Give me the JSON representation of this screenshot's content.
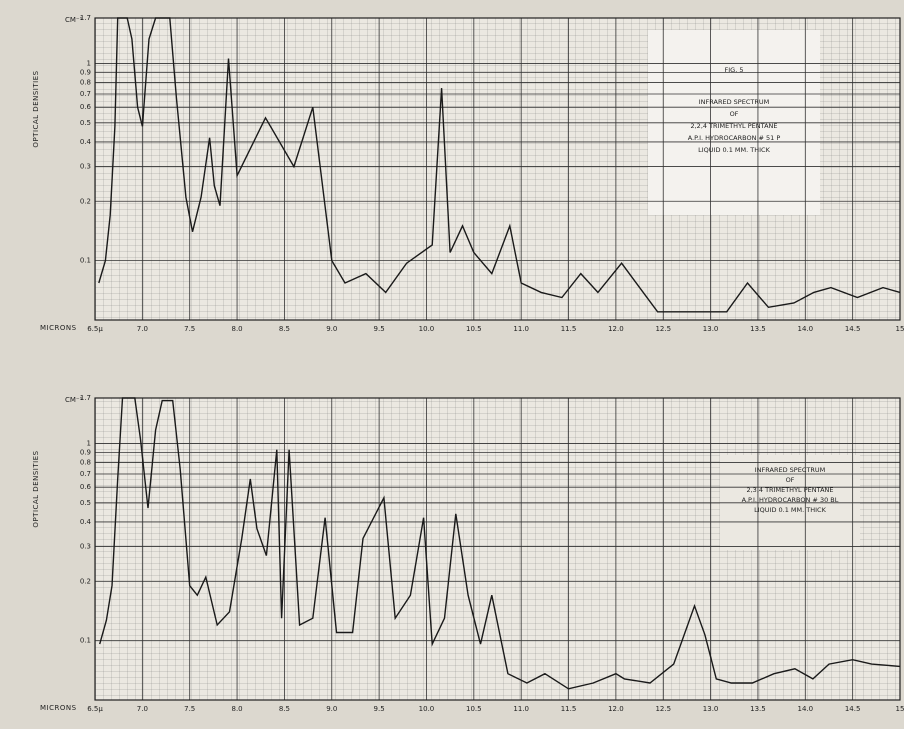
{
  "chart_data": [
    {
      "type": "line",
      "y_unit": "CM⁻¹",
      "ylabel": "OPTICAL DENSITIES",
      "xlabel": "MICRONS",
      "annotations": [
        "FIG. 5",
        "INFRARED SPECTRUM",
        "OF",
        "2,2,4 TRIMETHYL PENTANE",
        "A.P.I. HYDROCARBON # 51 P",
        "LIQUID 0.1 MM. THICK"
      ],
      "log_y": true,
      "grid": true,
      "color": "#1a1a1a",
      "xlim": [
        6.5,
        15
      ],
      "ylim": [
        0.05,
        1.7
      ],
      "xticks": [
        {
          "value": 6.5,
          "label": "6.5μ"
        },
        {
          "value": 7,
          "label": "7.0"
        },
        {
          "value": 7.5,
          "label": "7.5"
        },
        {
          "value": 8,
          "label": "8.0"
        },
        {
          "value": 8.5,
          "label": "8.5"
        },
        {
          "value": 9,
          "label": "9.0"
        },
        {
          "value": 9.5,
          "label": "9.5"
        },
        {
          "value": 10,
          "label": "10.0"
        },
        {
          "value": 10.5,
          "label": "10.5"
        },
        {
          "value": 11,
          "label": "11.0"
        },
        {
          "value": 11.5,
          "label": "11.5"
        },
        {
          "value": 12,
          "label": "12.0"
        },
        {
          "value": 12.5,
          "label": "12.5"
        },
        {
          "value": 13,
          "label": "13.0"
        },
        {
          "value": 13.5,
          "label": "13.5"
        },
        {
          "value": 14,
          "label": "14.0"
        },
        {
          "value": 14.5,
          "label": "14.5"
        },
        {
          "value": 15,
          "label": "15"
        }
      ],
      "yticks": [
        0.1,
        0.2,
        0.3,
        0.4,
        0.5,
        0.6,
        0.7,
        0.8,
        0.9,
        1,
        1.7
      ],
      "x": [
        6.54,
        6.61,
        6.66,
        6.71,
        6.74,
        6.84,
        6.89,
        6.95,
        7.0,
        7.07,
        7.14,
        7.29,
        7.36,
        7.46,
        7.53,
        7.62,
        7.71,
        7.76,
        7.82,
        7.91,
        8.0,
        8.3,
        8.6,
        8.8,
        9.0,
        9.14,
        9.36,
        9.57,
        9.79,
        10.06,
        10.16,
        10.25,
        10.38,
        10.5,
        10.69,
        10.88,
        11.0,
        11.21,
        11.43,
        11.63,
        11.81,
        12.06,
        12.25,
        12.44,
        12.94,
        13.17,
        13.39,
        13.61,
        13.88,
        14.09,
        14.27,
        14.55,
        14.82,
        15.0
      ],
      "values": [
        0.077,
        0.1,
        0.17,
        0.48,
        1.7,
        1.7,
        1.33,
        0.6,
        0.48,
        1.33,
        1.7,
        1.7,
        0.67,
        0.21,
        0.14,
        0.21,
        0.42,
        0.24,
        0.19,
        1.06,
        0.27,
        0.53,
        0.3,
        0.6,
        0.1,
        0.077,
        0.086,
        0.069,
        0.097,
        0.12,
        0.75,
        0.11,
        0.15,
        0.11,
        0.086,
        0.15,
        0.077,
        0.069,
        0.065,
        0.086,
        0.069,
        0.097,
        0.073,
        0.055,
        0.055,
        0.055,
        0.077,
        0.058,
        0.061,
        0.069,
        0.073,
        0.065,
        0.073,
        0.069
      ]
    },
    {
      "type": "line",
      "y_unit": "CM⁻¹",
      "ylabel": "OPTICAL DENSITIES",
      "xlabel": "MICRONS",
      "annotations": [
        "INFRARED SPECTRUM",
        "OF",
        "2,3,4 TRIMETHYL PENTANE",
        "A.P.I. HYDROCARBON # 30 BL",
        "LIQUID 0.1 MM. THICK"
      ],
      "log_y": true,
      "grid": true,
      "color": "#1a1a1a",
      "xlim": [
        6.5,
        15
      ],
      "ylim": [
        0.05,
        1.7
      ],
      "xticks": [
        {
          "value": 6.5,
          "label": "6.5μ"
        },
        {
          "value": 7,
          "label": "7.0"
        },
        {
          "value": 7.5,
          "label": "7.5"
        },
        {
          "value": 8,
          "label": "8.0"
        },
        {
          "value": 8.5,
          "label": "8.5"
        },
        {
          "value": 9,
          "label": "9.0"
        },
        {
          "value": 9.5,
          "label": "9.5"
        },
        {
          "value": 10,
          "label": "10.0"
        },
        {
          "value": 10.5,
          "label": "10.5"
        },
        {
          "value": 11,
          "label": "11.0"
        },
        {
          "value": 11.5,
          "label": "11.5"
        },
        {
          "value": 12,
          "label": "12.0"
        },
        {
          "value": 12.5,
          "label": "12.5"
        },
        {
          "value": 13,
          "label": "13.0"
        },
        {
          "value": 13.5,
          "label": "13.5"
        },
        {
          "value": 14,
          "label": "14.0"
        },
        {
          "value": 14.5,
          "label": "14.5"
        },
        {
          "value": 15,
          "label": "15"
        }
      ],
      "yticks": [
        0.1,
        0.2,
        0.3,
        0.4,
        0.5,
        0.6,
        0.7,
        0.8,
        0.9,
        1,
        1.7
      ],
      "x": [
        6.55,
        6.62,
        6.68,
        6.74,
        6.79,
        6.92,
        6.98,
        7.06,
        7.14,
        7.21,
        7.32,
        7.4,
        7.5,
        7.58,
        7.67,
        7.79,
        7.92,
        8.05,
        8.14,
        8.21,
        8.31,
        8.42,
        8.47,
        8.55,
        8.66,
        8.8,
        8.93,
        9.05,
        9.22,
        9.33,
        9.55,
        9.67,
        9.83,
        9.97,
        10.06,
        10.19,
        10.31,
        10.44,
        10.57,
        10.69,
        10.86,
        11.06,
        11.25,
        11.5,
        11.76,
        12.0,
        12.09,
        12.36,
        12.61,
        12.83,
        12.94,
        13.06,
        13.22,
        13.44,
        13.67,
        13.89,
        14.08,
        14.25,
        14.5,
        14.7,
        15.0
      ],
      "values": [
        0.096,
        0.127,
        0.19,
        0.66,
        1.7,
        1.7,
        1.05,
        0.47,
        1.17,
        1.65,
        1.65,
        0.74,
        0.19,
        0.17,
        0.21,
        0.12,
        0.14,
        0.33,
        0.66,
        0.37,
        0.27,
        0.93,
        0.13,
        0.93,
        0.12,
        0.13,
        0.42,
        0.11,
        0.11,
        0.33,
        0.53,
        0.13,
        0.17,
        0.42,
        0.096,
        0.13,
        0.44,
        0.17,
        0.096,
        0.17,
        0.068,
        0.061,
        0.068,
        0.057,
        0.061,
        0.068,
        0.064,
        0.061,
        0.076,
        0.15,
        0.107,
        0.064,
        0.061,
        0.061,
        0.068,
        0.072,
        0.064,
        0.076,
        0.08,
        0.076,
        0.074
      ]
    }
  ]
}
